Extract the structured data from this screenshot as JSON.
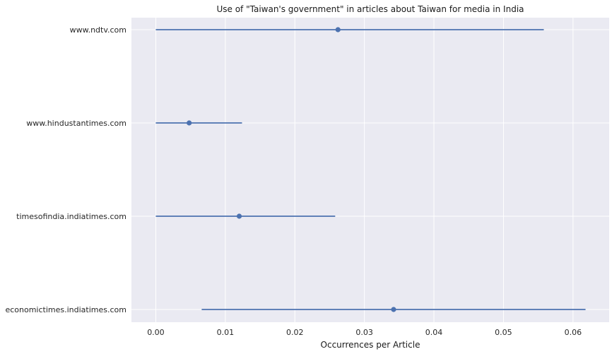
{
  "chart_data": {
    "type": "scatter",
    "title": "Use of \"Taiwan's government\" in articles about Taiwan for media in India",
    "xlabel": "Occurrences per Article",
    "ylabel": "",
    "xlim": [
      -0.0035,
      0.0652
    ],
    "xticks": [
      0.0,
      0.01,
      0.02,
      0.03,
      0.04,
      0.05,
      0.06
    ],
    "xtick_labels": [
      "0.00",
      "0.01",
      "0.02",
      "0.03",
      "0.04",
      "0.05",
      "0.06"
    ],
    "categories": [
      "www.ndtv.com",
      "www.hindustantimes.com",
      "timesofindia.indiatimes.com",
      "economictimes.indiatimes.com"
    ],
    "values": [
      0.0262,
      0.0048,
      0.012,
      0.0342
    ],
    "ci_low": [
      0.0,
      0.0,
      0.0,
      0.0066
    ],
    "ci_high": [
      0.0558,
      0.0124,
      0.0258,
      0.0618
    ],
    "grid": true,
    "colors": {
      "background": "#eaeaf2",
      "series": "#4c72b0",
      "grid": "#ffffff"
    }
  }
}
